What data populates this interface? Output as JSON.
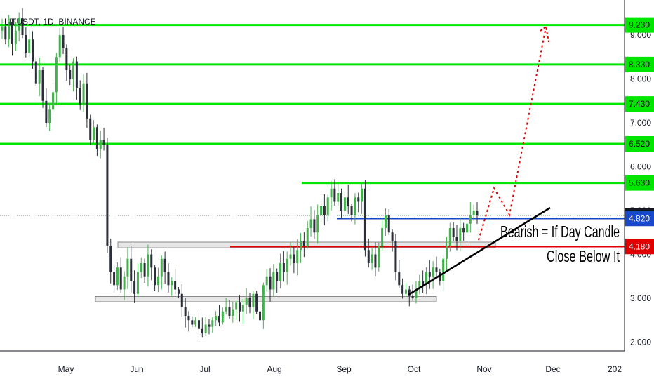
{
  "header": {
    "symbol": "LITUSDT, 1D, BINANCE"
  },
  "chart_data": {
    "type": "candlestick",
    "ylim": [
      1.8,
      9.8
    ],
    "y_ticks": [
      "2.000",
      "3.000",
      "4.000",
      "5.000",
      "6.000",
      "7.000",
      "8.000",
      "9.000"
    ],
    "x_ticks": [
      "May",
      "Jun",
      "Jul",
      "Aug",
      "Sep",
      "Oct",
      "Nov",
      "Dec",
      "202"
    ],
    "resistance_levels": [
      {
        "value": 9.23,
        "label": "9.230"
      },
      {
        "value": 8.33,
        "label": "8.330"
      },
      {
        "value": 7.43,
        "label": "7.430"
      },
      {
        "value": 6.52,
        "label": "6.520"
      },
      {
        "value": 5.63,
        "label": "5.630"
      }
    ],
    "current_price": {
      "value": 4.886,
      "label": "4.886"
    },
    "blue_level": {
      "value": 4.82,
      "label": "4.820"
    },
    "red_level": {
      "value": 4.18,
      "label": "4.180"
    },
    "support_zones": [
      {
        "value_low": 4.15,
        "value_high": 4.28
      },
      {
        "value_low": 2.92,
        "value_high": 3.04
      }
    ],
    "annotations": [
      "Bearish = If Day Candle",
      "Close Below It"
    ],
    "colors": {
      "up": "#26a69a",
      "up_bright": "#4caf50",
      "down": "#2a2e39",
      "green_line": "#00e600",
      "blue_line": "#1848cc",
      "red_line": "#e00000",
      "trend": "#000000",
      "projection": "#e00000"
    },
    "candles_close": [
      9.2,
      8.9,
      9.3,
      8.8,
      9.1,
      9.4,
      9.0,
      8.6,
      8.9,
      8.4,
      7.9,
      8.2,
      7.5,
      7.0,
      7.3,
      7.7,
      8.5,
      9.0,
      8.7,
      8.2,
      8.0,
      8.4,
      7.8,
      7.4,
      7.9,
      7.1,
      6.6,
      6.9,
      6.4,
      6.6,
      6.5,
      4.2,
      3.6,
      3.3,
      3.7,
      3.2,
      3.5,
      3.9,
      3.4,
      3.1,
      3.6,
      3.8,
      3.5,
      4.0,
      3.7,
      3.3,
      3.5,
      3.9,
      3.6,
      3.3,
      3.4,
      3.2,
      3.1,
      2.8,
      2.6,
      2.5,
      2.4,
      2.5,
      2.3,
      2.2,
      2.4,
      2.35,
      2.5,
      2.6,
      2.45,
      2.7,
      2.8,
      2.6,
      2.75,
      2.9,
      2.7,
      2.85,
      3.0,
      2.8,
      3.1,
      2.7,
      2.5,
      3.3,
      3.5,
      3.2,
      3.6,
      3.4,
      3.8,
      3.6,
      3.9,
      4.0,
      3.8,
      4.1,
      4.3,
      4.2,
      4.6,
      4.8,
      4.5,
      4.9,
      5.1,
      4.9,
      5.3,
      5.5,
      5.2,
      5.4,
      5.0,
      5.3,
      5.1,
      4.9,
      5.3,
      5.2,
      5.5,
      4.1,
      3.8,
      4.0,
      3.7,
      4.2,
      4.6,
      4.9,
      4.5,
      4.3,
      3.6,
      3.3,
      3.1,
      3.2,
      3.05,
      3.0,
      3.2,
      3.4,
      3.3,
      3.6,
      3.5,
      3.7,
      3.6,
      3.4,
      3.9,
      4.2,
      4.6,
      4.4,
      4.3,
      4.6,
      4.5,
      4.7,
      4.9,
      5.0,
      4.886
    ]
  }
}
